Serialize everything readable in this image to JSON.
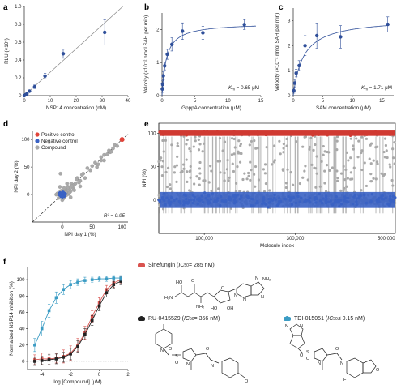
{
  "chart_data": [
    {
      "panel": "a",
      "type": "line",
      "xlabel": "NSP14 concentration (nM)",
      "ylabel": "RLU (×10⁶)",
      "xlim": [
        0,
        40
      ],
      "ylim": [
        0,
        1.0
      ],
      "xticks": [
        "0",
        "10",
        "20",
        "30",
        "40"
      ],
      "yticks": [
        "0",
        "0.2",
        "0.4",
        "0.6",
        "0.8",
        "1.0"
      ],
      "color": "#2f4f9a",
      "series": [
        {
          "x": [
            0,
            0.5,
            1,
            2,
            4,
            8,
            15,
            31
          ],
          "y": [
            0.0,
            0.01,
            0.02,
            0.05,
            0.1,
            0.22,
            0.47,
            0.71
          ],
          "err": [
            0.01,
            0.01,
            0.01,
            0.01,
            0.02,
            0.03,
            0.05,
            0.14
          ]
        }
      ],
      "fit_line": {
        "x": [
          0,
          38
        ],
        "y": [
          0,
          1.18
        ]
      }
    },
    {
      "panel": "b",
      "type": "scatter",
      "xlabel": "GpppA concentration (μM)",
      "ylabel": "Velocity (×10⁻² nmol SAH per min)",
      "xlim": [
        0,
        15
      ],
      "ylim": [
        0,
        2.5
      ],
      "xticks": [
        "0",
        "5",
        "10",
        "15"
      ],
      "yticks": [
        "0",
        "1",
        "2"
      ],
      "annotation": "Km = 0.65 μM",
      "annotation_km": "K",
      "annotation_sub": "m",
      "annotation_val": " = 0.65 μM",
      "color": "#2f4f9a",
      "series": [
        {
          "x": [
            0.05,
            0.1,
            0.2,
            0.4,
            0.8,
            1.5,
            3.1,
            6.2,
            12.5
          ],
          "y": [
            0.2,
            0.35,
            0.6,
            0.9,
            1.25,
            1.55,
            1.95,
            1.9,
            2.15
          ],
          "err": [
            0.1,
            0.1,
            0.12,
            0.12,
            0.15,
            0.2,
            0.25,
            0.2,
            0.15
          ]
        }
      ]
    },
    {
      "panel": "c",
      "type": "scatter",
      "xlabel": "SAM concentration (μM)",
      "ylabel": "Velocity (×10⁻² nmol SAH per min)",
      "xlim": [
        0,
        17
      ],
      "ylim": [
        0,
        3.5
      ],
      "xticks": [
        "0",
        "5",
        "10",
        "15"
      ],
      "yticks": [
        "0",
        "1",
        "2",
        "3"
      ],
      "annotation_km": "K",
      "annotation_sub": "m",
      "annotation_val": " = 1.71 μM",
      "color": "#2f4f9a",
      "series": [
        {
          "x": [
            0.1,
            0.25,
            0.5,
            1,
            2,
            4,
            8,
            16
          ],
          "y": [
            0.2,
            0.5,
            0.9,
            1.2,
            2.0,
            2.4,
            2.35,
            2.85
          ],
          "err": [
            0.1,
            0.15,
            0.15,
            0.2,
            0.4,
            0.5,
            0.45,
            0.3
          ]
        }
      ]
    },
    {
      "panel": "d",
      "type": "scatter",
      "xlabel": "NPI day 1 (%)",
      "ylabel": "NPI day 2 (%)",
      "xlim": [
        -50,
        110
      ],
      "ylim": [
        -50,
        115
      ],
      "xticks": [
        "0",
        "50",
        "100"
      ],
      "yticks": [
        "0",
        "50",
        "100"
      ],
      "annotation": "R² = 0.95",
      "legend": [
        "Positive control",
        "Negative control",
        "Compound"
      ],
      "colors": {
        "positive": "#e0443a",
        "negative": "#3a62c4",
        "compound": "#a9a9a9"
      },
      "positive_point": {
        "x": 100,
        "y": 100
      },
      "compound_points": [
        [
          42,
          48
        ],
        [
          55,
          58
        ],
        [
          60,
          55
        ],
        [
          65,
          68
        ],
        [
          70,
          72
        ],
        [
          75,
          73
        ],
        [
          78,
          80
        ],
        [
          80,
          77
        ],
        [
          85,
          84
        ],
        [
          88,
          90
        ],
        [
          65,
          62
        ],
        [
          50,
          52
        ],
        [
          35,
          38
        ],
        [
          30,
          25
        ],
        [
          25,
          30
        ],
        [
          20,
          18
        ],
        [
          15,
          20
        ],
        [
          12,
          10
        ],
        [
          10,
          14
        ],
        [
          8,
          5
        ],
        [
          5,
          8
        ],
        [
          3,
          2
        ],
        [
          2,
          -3
        ],
        [
          -2,
          3
        ],
        [
          -5,
          -2
        ],
        [
          0,
          0
        ],
        [
          6,
          4
        ],
        [
          -3,
          6
        ],
        [
          4,
          -4
        ],
        [
          9,
          12
        ],
        [
          14,
          6
        ],
        [
          18,
          12
        ],
        [
          22,
          20
        ],
        [
          28,
          22
        ],
        [
          -6,
          -6
        ],
        [
          -8,
          2
        ],
        [
          1,
          -8
        ],
        [
          11,
          1
        ],
        [
          16,
          15
        ],
        [
          -3,
          38
        ],
        [
          30,
          15
        ],
        [
          5,
          10
        ],
        [
          7,
          -1
        ],
        [
          -1,
          7
        ],
        [
          3,
          12
        ],
        [
          12,
          3
        ],
        [
          20,
          8
        ],
        [
          8,
          20
        ],
        [
          0,
          -10
        ],
        [
          -10,
          0
        ],
        [
          38,
          30
        ],
        [
          47,
          44
        ],
        [
          58,
          50
        ],
        [
          70,
          62
        ],
        [
          82,
          78
        ],
        [
          92,
          88
        ],
        [
          -4,
          14
        ],
        [
          14,
          -5
        ],
        [
          24,
          28
        ],
        [
          33,
          36
        ]
      ],
      "negative_points": [
        [
          0,
          0
        ],
        [
          -2,
          1
        ],
        [
          1,
          -2
        ],
        [
          2,
          3
        ],
        [
          -3,
          -1
        ],
        [
          3,
          -3
        ],
        [
          -1,
          2
        ],
        [
          1,
          1
        ],
        [
          -4,
          3
        ],
        [
          4,
          -1
        ],
        [
          0,
          -4
        ],
        [
          -2,
          -3
        ],
        [
          2,
          -1
        ],
        [
          -1,
          -1
        ],
        [
          3,
          2
        ],
        [
          -3,
          2
        ],
        [
          1,
          4
        ],
        [
          -5,
          0
        ],
        [
          5,
          1
        ],
        [
          0,
          3
        ]
      ]
    },
    {
      "panel": "e",
      "type": "scatter",
      "xlabel": "Molecule index",
      "ylabel": "NPI (%)",
      "xlim": [
        0,
        520000
      ],
      "ylim": [
        -50,
        115
      ],
      "xticks": [
        "100,000",
        "300,000",
        "500,000"
      ],
      "yticks": [
        "0",
        "50",
        "100"
      ],
      "positive_level": 100,
      "negative_level": 0,
      "reference_lines": [
        0,
        100
      ],
      "dashed_level": 60,
      "colors": {
        "positive": "#d03a32",
        "negative": "#3a62c4",
        "compound": "#a9a9a9"
      }
    },
    {
      "panel": "f",
      "type": "line",
      "xlabel": "log [Compound] (μM)",
      "ylabel": "Normalized NSP14 inhibition (%)",
      "xlim": [
        -5,
        2
      ],
      "ylim": [
        -10,
        115
      ],
      "xticks": [
        "-4",
        "-2",
        "0",
        "2"
      ],
      "yticks": [
        "0",
        "20",
        "40",
        "60",
        "80",
        "100"
      ],
      "series": [
        {
          "name": "Sinefungin",
          "color": "#d9534f",
          "x": [
            -4.5,
            -4,
            -3.5,
            -3,
            -2.5,
            -2,
            -1.5,
            -1,
            -0.5,
            0,
            0.5,
            1,
            1.5
          ],
          "y": [
            2,
            3,
            3,
            4,
            6,
            10,
            20,
            35,
            55,
            72,
            88,
            96,
            100
          ],
          "err": [
            6,
            7,
            7,
            6,
            8,
            9,
            8,
            8,
            7,
            6,
            5,
            5,
            4
          ]
        },
        {
          "name": "RU-0415529",
          "color": "#222222",
          "x": [
            -4.5,
            -4,
            -3.5,
            -3,
            -2.5,
            -2,
            -1.5,
            -1,
            -0.5,
            0,
            0.5,
            1,
            1.5
          ],
          "y": [
            0,
            1,
            2,
            3,
            5,
            9,
            18,
            33,
            50,
            68,
            84,
            94,
            98
          ],
          "err": [
            5,
            5,
            6,
            6,
            6,
            7,
            7,
            7,
            6,
            6,
            5,
            4,
            4
          ]
        },
        {
          "name": "TDI-015051",
          "color": "#3b9cc4",
          "x": [
            -4.5,
            -4,
            -3.5,
            -3,
            -2.5,
            -2,
            -1.5,
            -1,
            -0.5,
            0,
            0.5,
            1,
            1.5
          ],
          "y": [
            20,
            40,
            62,
            78,
            88,
            94,
            97,
            99,
            100,
            101,
            101,
            102,
            102
          ],
          "err": [
            8,
            9,
            8,
            7,
            6,
            5,
            4,
            4,
            3,
            3,
            3,
            3,
            3
          ]
        }
      ],
      "legend_entries": [
        {
          "name": "Sinefungin",
          "ic50": " = 285 nM"
        },
        {
          "name": "RU-0415529",
          "ic50": " = 356 nM"
        },
        {
          "name": "TDI-015051",
          "ic50": " ≤ 0.15 nM"
        }
      ],
      "ic50_label": "IC",
      "ic50_sub": "50"
    }
  ],
  "structures": {
    "sinefungin_groups": [
      "H₂N",
      "HO",
      "O",
      "NH₂",
      "O",
      "N",
      "N",
      "NH₂",
      "N",
      "N",
      "HO",
      "OH"
    ],
    "ru_groups": [
      "N",
      "O",
      "S",
      "O",
      "N",
      "N",
      "O",
      "O"
    ],
    "tdi_groups": [
      "N",
      "N",
      "O",
      "S",
      "O",
      "N",
      "N",
      "O",
      "F",
      "O"
    ]
  },
  "panel_letters": [
    "a",
    "b",
    "c",
    "d",
    "e",
    "f"
  ]
}
